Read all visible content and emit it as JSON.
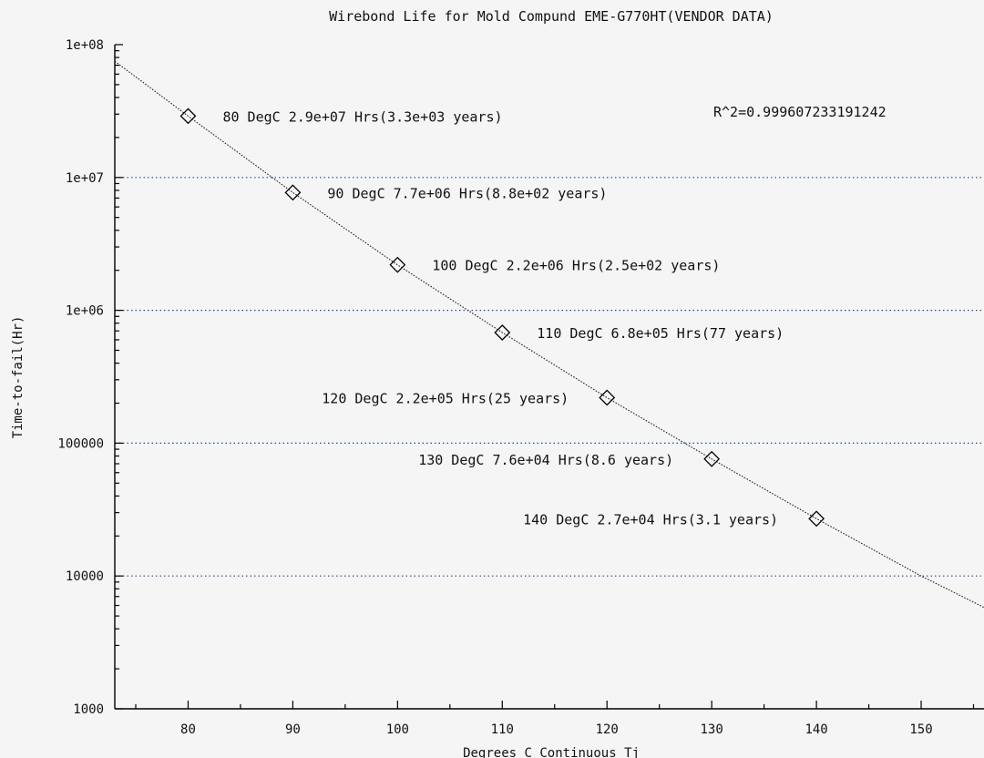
{
  "chart_data": {
    "type": "scatter",
    "title": "Wirebond Life for Mold Compund EME-G770HT(VENDOR DATA)",
    "xlabel": "Degrees C Continuous Tj",
    "ylabel": "Time-to-fail(Hr)",
    "x_scale": "linear",
    "y_scale": "log",
    "xlim": [
      73,
      156
    ],
    "ylim": [
      1000,
      100000000
    ],
    "x_ticks": [
      80,
      90,
      100,
      110,
      120,
      130,
      140,
      150
    ],
    "x_tick_labels": [
      "80",
      "90",
      "100",
      "110",
      "120",
      "130",
      "140",
      "150"
    ],
    "y_ticks": [
      1000,
      10000,
      100000,
      1000000,
      10000000,
      100000000
    ],
    "y_tick_labels": [
      "1000",
      "10000",
      "100000",
      "1e+06",
      "1e+07",
      "1e+08"
    ],
    "grid": "horizontal-dotted",
    "grid_color": "#1a4d8f",
    "r_squared_label": "R^2=0.999607233191242",
    "points": [
      {
        "x": 80,
        "y": 29000000,
        "label": "80 DegC 2.9e+07 Hrs(3.3e+03 years)"
      },
      {
        "x": 90,
        "y": 7700000,
        "label": "90 DegC 7.7e+06 Hrs(8.8e+02 years)"
      },
      {
        "x": 100,
        "y": 2200000,
        "label": "100 DegC 2.2e+06 Hrs(2.5e+02 years)"
      },
      {
        "x": 110,
        "y": 680000,
        "label": "110 DegC 6.8e+05 Hrs(77 years)"
      },
      {
        "x": 120,
        "y": 220000,
        "label": "120 DegC 2.2e+05 Hrs(25 years)"
      },
      {
        "x": 130,
        "y": 76000,
        "label": "130 DegC 7.6e+04 Hrs(8.6 years)"
      },
      {
        "x": 140,
        "y": 27000,
        "label": "140 DegC 2.7e+04 Hrs(3.1 years)"
      }
    ],
    "fit_line": {
      "x": [
        73,
        80,
        90,
        100,
        110,
        120,
        130,
        140,
        150,
        156
      ],
      "y": [
        75000000,
        29000000,
        7700000,
        2200000,
        680000,
        220000,
        76000,
        27000,
        10000,
        5800
      ]
    }
  }
}
